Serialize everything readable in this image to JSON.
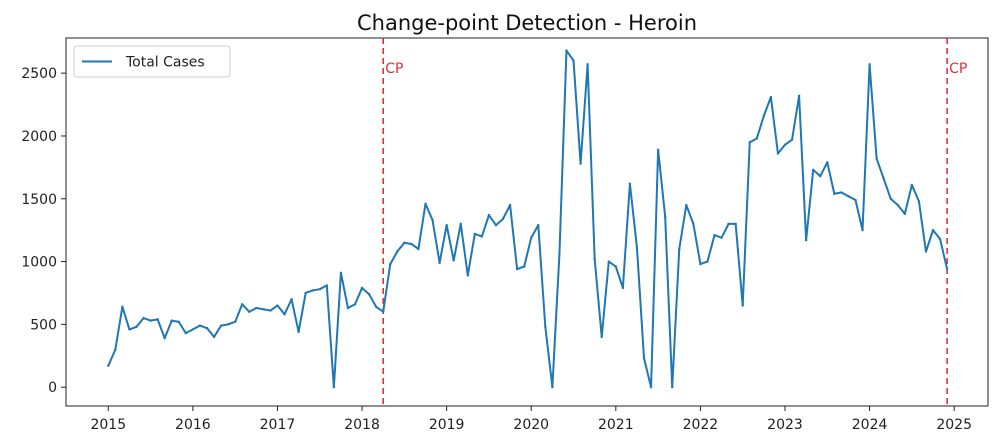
{
  "chart_data": {
    "type": "line",
    "title": "Change-point Detection - Heroin",
    "xlabel": "",
    "ylabel": "",
    "xlim": [
      2014.5,
      2025.4
    ],
    "ylim": [
      -150,
      2780
    ],
    "x_ticks": [
      2015,
      2016,
      2017,
      2018,
      2019,
      2020,
      2021,
      2022,
      2023,
      2024,
      2025
    ],
    "x_tick_labels": [
      "2015",
      "2016",
      "2017",
      "2018",
      "2019",
      "2020",
      "2021",
      "2022",
      "2023",
      "2024",
      "2025"
    ],
    "y_ticks": [
      0,
      500,
      1000,
      1500,
      2000,
      2500
    ],
    "y_tick_labels": [
      "0",
      "500",
      "1000",
      "1500",
      "2000",
      "2500"
    ],
    "grid": false,
    "legend": {
      "position": "top-left",
      "entries": [
        "Total Cases"
      ]
    },
    "series_color": "#1f77b4",
    "changepoint_color": "#e0303a",
    "series": [
      {
        "name": "Total Cases",
        "x_start": "2015-01",
        "x_step": "1 month",
        "values": [
          170,
          300,
          640,
          460,
          480,
          550,
          530,
          540,
          390,
          530,
          520,
          430,
          460,
          490,
          470,
          400,
          490,
          500,
          520,
          660,
          600,
          630,
          620,
          610,
          650,
          580,
          700,
          440,
          750,
          770,
          780,
          810,
          0,
          910,
          630,
          660,
          790,
          740,
          640,
          600,
          980,
          1080,
          1150,
          1140,
          1100,
          1460,
          1330,
          990,
          1290,
          1010,
          1300,
          890,
          1220,
          1200,
          1370,
          1290,
          1340,
          1450,
          940,
          960,
          1190,
          1290,
          480,
          0,
          1060,
          2680,
          2600,
          1780,
          2570,
          1020,
          400,
          1000,
          960,
          790,
          1620,
          1110,
          230,
          0,
          1890,
          1360,
          0,
          1100,
          1450,
          1300,
          980,
          1000,
          1210,
          1190,
          1300,
          1300,
          650,
          1950,
          1980,
          2160,
          2310,
          1860,
          1930,
          1970,
          2320,
          1170,
          1730,
          1680,
          1790,
          1540,
          1550,
          1520,
          1490,
          1250,
          2570,
          1820,
          1660,
          1500,
          1450,
          1380,
          1610,
          1480,
          1080,
          1250,
          1180,
          940
        ]
      }
    ],
    "changepoints": [
      {
        "x": "2018-04",
        "label": "CP"
      },
      {
        "x": "2024-12",
        "label": "CP"
      }
    ]
  }
}
